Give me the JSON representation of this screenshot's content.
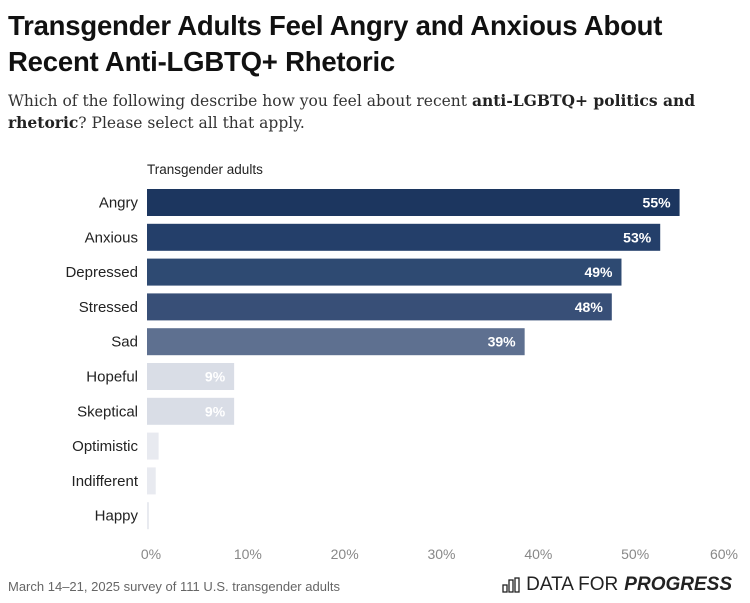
{
  "title": "Transgender Adults Feel Angry and Anxious About Recent Anti-LGBTQ+ Rhetoric",
  "subtitle": {
    "pre": "Which of the following describe how you feel about recent ",
    "bold": "anti-LGBTQ+ politics and rhetoric",
    "post": "? Please select all that apply."
  },
  "footer": "March 14–21, 2025 survey of 111 U.S. transgender adults",
  "logo": {
    "light": "DATA FOR",
    "bold": "PROGRESS"
  },
  "chart_data": {
    "type": "bar",
    "orientation": "horizontal",
    "series_label": "Transgender adults",
    "categories": [
      "Angry",
      "Anxious",
      "Depressed",
      "Stressed",
      "Sad",
      "Hopeful",
      "Skeptical",
      "Optimistic",
      "Indifferent",
      "Happy"
    ],
    "values": [
      55,
      53,
      49,
      48,
      39,
      9,
      9,
      1.2,
      0.9,
      0.2
    ],
    "labels": [
      "55%",
      "53%",
      "49%",
      "48%",
      "39%",
      "9%",
      "9%",
      "",
      "",
      ""
    ],
    "colors": [
      "#1c365f",
      "#243f6a",
      "#2e4a72",
      "#384f77",
      "#5e7090",
      "#d9dde6",
      "#d9dde6",
      "#e8eaf0",
      "#e8eaf0",
      "#e8eaf0"
    ],
    "xlim": [
      0,
      60
    ],
    "xticks": [
      "0%",
      "10%",
      "20%",
      "30%",
      "40%",
      "50%",
      "60%"
    ],
    "grid": false
  }
}
